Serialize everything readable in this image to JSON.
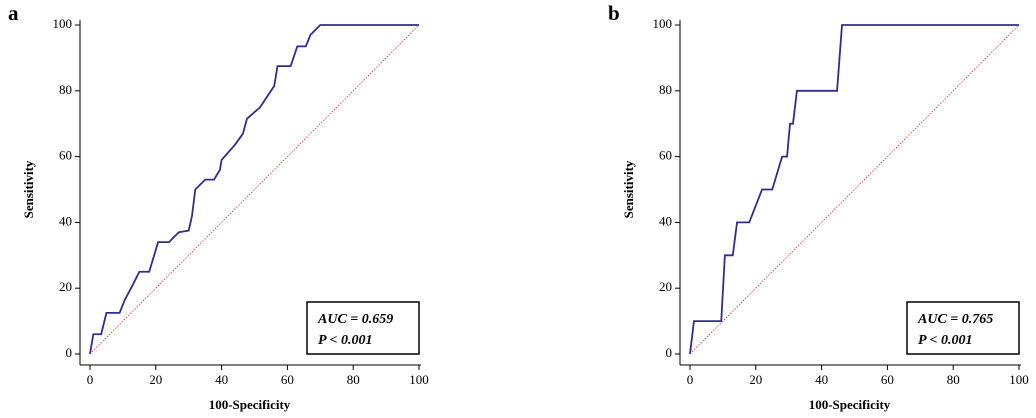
{
  "chart_data": [
    {
      "type": "line",
      "panel_label": "a",
      "xlabel": "100-Specificity",
      "ylabel": "Sensitivity",
      "x": [
        0,
        1,
        3.4,
        5,
        9,
        10.6,
        13,
        15,
        18,
        20.7,
        24,
        27,
        30,
        31,
        32,
        35,
        37.7,
        39.5,
        40,
        44,
        46.5,
        47.7,
        51.7,
        56,
        57,
        61,
        63,
        65.6,
        67,
        70,
        100
      ],
      "values": [
        0,
        6,
        6,
        12.5,
        12.5,
        16.5,
        21,
        25,
        25,
        34,
        34,
        37,
        37.5,
        42,
        50,
        53,
        53,
        56,
        59,
        63.5,
        67,
        71.5,
        75,
        81.5,
        87.5,
        87.5,
        93.5,
        93.5,
        97,
        100,
        100
      ],
      "color": "#2e2e8f",
      "xlim": [
        0,
        100
      ],
      "ylim": [
        0,
        100
      ],
      "xticks": [
        0,
        20,
        40,
        60,
        80,
        100
      ],
      "yticks": [
        0,
        20,
        40,
        60,
        80,
        100
      ],
      "annotations": [
        "AUC = 0.659",
        "P < 0.001"
      ]
    },
    {
      "type": "line",
      "panel_label": "b",
      "xlabel": "100-Specificity",
      "ylabel": "Sensitivity",
      "x": [
        0,
        1.2,
        9.5,
        10.6,
        13,
        14.3,
        18,
        21.9,
        25,
        28,
        29.5,
        30.4,
        31.3,
        32.5,
        44.7,
        46.2,
        100
      ],
      "values": [
        0,
        10,
        10,
        30,
        30,
        40,
        40,
        50,
        50,
        60,
        60,
        70,
        70,
        80,
        80,
        100,
        100
      ],
      "color": "#2e2e8f",
      "xlim": [
        0,
        100
      ],
      "ylim": [
        0,
        100
      ],
      "xticks": [
        0,
        20,
        40,
        60,
        80,
        100
      ],
      "yticks": [
        0,
        20,
        40,
        60,
        80,
        100
      ],
      "annotations": [
        "AUC = 0.765",
        "P < 0.001"
      ]
    }
  ]
}
